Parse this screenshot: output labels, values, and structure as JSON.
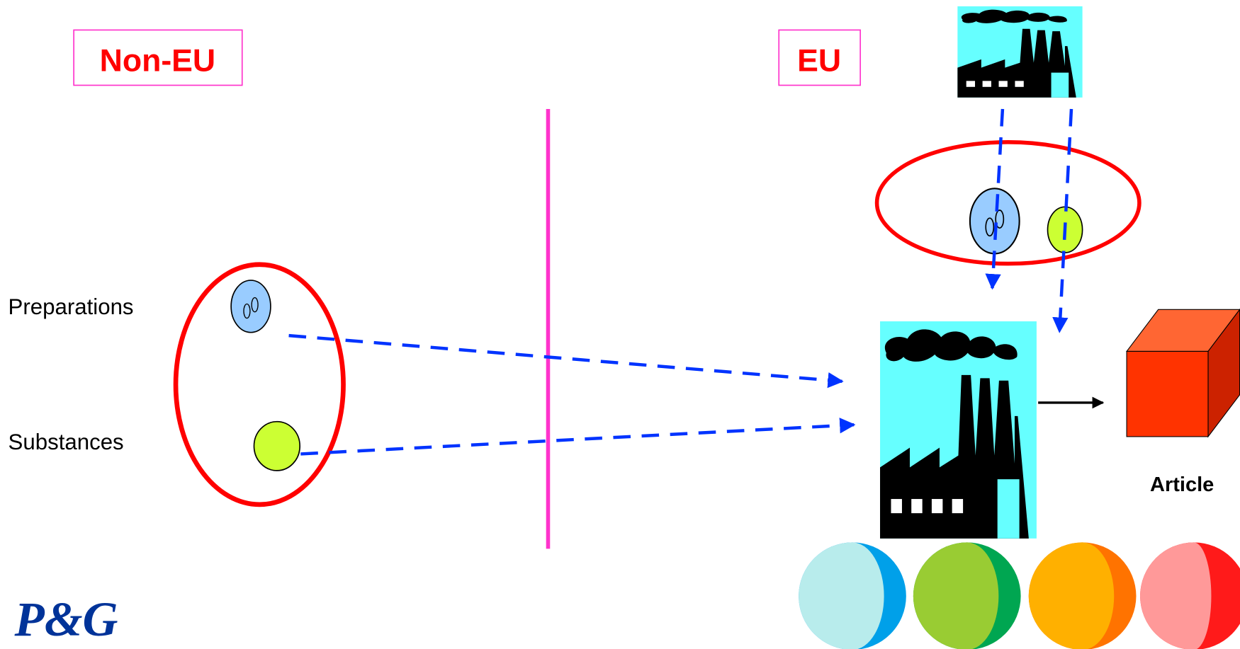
{
  "regions": {
    "non_eu": "Non-EU",
    "eu": "EU"
  },
  "items": [
    "Preparations",
    "Substances"
  ],
  "article": "Article",
  "logo": "P&G"
}
